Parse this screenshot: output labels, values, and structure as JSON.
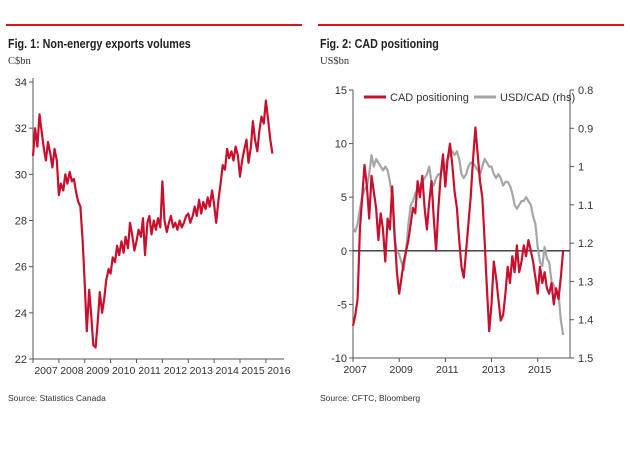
{
  "chart_data": [
    {
      "type": "line",
      "title": "Fig. 1: Non-energy exports volumes",
      "unit_label": "C$bn",
      "source": "Source: Statistics Canada",
      "xlim": [
        2007,
        2016.7
      ],
      "ylim": [
        22,
        34
      ],
      "x_ticks": [
        2007,
        2008,
        2009,
        2010,
        2011,
        2012,
        2013,
        2014,
        2015,
        2016
      ],
      "x_tick_labels": [
        "2007",
        "2008",
        "2009",
        "2010",
        "2011",
        "2012",
        "2013",
        "2014",
        "2015",
        "2016"
      ],
      "y_ticks": [
        22,
        24,
        26,
        28,
        30,
        32,
        34
      ],
      "y_tick_labels": [
        "22",
        "24",
        "26",
        "28",
        "30",
        "32",
        "34"
      ],
      "series": [
        {
          "name": "Non-energy exports volumes",
          "color": "#c8102e",
          "x": [
            2007.0,
            2007.08,
            2007.17,
            2007.25,
            2007.33,
            2007.42,
            2007.5,
            2007.58,
            2007.67,
            2007.75,
            2007.83,
            2007.92,
            2008.0,
            2008.08,
            2008.17,
            2008.25,
            2008.33,
            2008.42,
            2008.5,
            2008.58,
            2008.67,
            2008.75,
            2008.83,
            2008.92,
            2009.0,
            2009.08,
            2009.17,
            2009.25,
            2009.33,
            2009.42,
            2009.5,
            2009.58,
            2009.67,
            2009.75,
            2009.83,
            2009.92,
            2010.0,
            2010.08,
            2010.17,
            2010.25,
            2010.33,
            2010.42,
            2010.5,
            2010.58,
            2010.67,
            2010.75,
            2010.83,
            2010.92,
            2011.0,
            2011.08,
            2011.17,
            2011.25,
            2011.33,
            2011.42,
            2011.5,
            2011.58,
            2011.67,
            2011.75,
            2011.83,
            2011.92,
            2012.0,
            2012.08,
            2012.17,
            2012.25,
            2012.33,
            2012.42,
            2012.5,
            2012.58,
            2012.67,
            2012.75,
            2012.83,
            2012.92,
            2013.0,
            2013.08,
            2013.17,
            2013.25,
            2013.33,
            2013.42,
            2013.5,
            2013.58,
            2013.67,
            2013.75,
            2013.83,
            2013.92,
            2014.0,
            2014.08,
            2014.17,
            2014.25,
            2014.33,
            2014.42,
            2014.5,
            2014.58,
            2014.67,
            2014.75,
            2014.83,
            2014.92,
            2015.0,
            2015.08,
            2015.17,
            2015.25,
            2015.33,
            2015.42,
            2015.5,
            2015.58,
            2015.67,
            2015.75,
            2015.83,
            2015.92,
            2016.0,
            2016.08,
            2016.17,
            2016.25
          ],
          "y": [
            30.8,
            32.0,
            31.2,
            32.6,
            31.9,
            31.1,
            30.6,
            31.4,
            30.9,
            30.3,
            31.1,
            30.6,
            29.1,
            29.6,
            29.3,
            30.0,
            29.6,
            30.1,
            29.7,
            29.8,
            29.2,
            28.8,
            28.6,
            27.1,
            25.2,
            23.2,
            25.0,
            23.9,
            22.6,
            22.5,
            23.6,
            24.9,
            24.0,
            24.6,
            25.4,
            25.9,
            25.7,
            26.4,
            26.2,
            26.9,
            26.5,
            27.1,
            26.6,
            27.3,
            26.8,
            27.9,
            27.4,
            26.7,
            27.1,
            27.6,
            27.3,
            28.1,
            26.5,
            27.9,
            28.2,
            27.4,
            28.0,
            27.6,
            28.1,
            27.7,
            29.7,
            28.0,
            27.5,
            27.9,
            28.2,
            27.7,
            27.9,
            27.6,
            28.0,
            27.7,
            27.9,
            28.2,
            28.3,
            27.9,
            28.2,
            28.6,
            28.2,
            28.9,
            28.3,
            28.8,
            28.5,
            29.0,
            28.6,
            29.3,
            28.7,
            27.9,
            28.9,
            29.6,
            30.4,
            30.2,
            31.1,
            30.7,
            31.0,
            30.6,
            31.2,
            30.8,
            29.9,
            30.6,
            31.1,
            31.5,
            30.5,
            31.2,
            32.3,
            31.5,
            31.0,
            31.9,
            32.5,
            32.2,
            33.2,
            32.4,
            31.5,
            30.9
          ]
        }
      ]
    },
    {
      "type": "line",
      "title": "Fig. 2: CAD positioning",
      "unit_label": "US$bn",
      "source": "Source: CFTC, Bloomberg",
      "xlim": [
        2007,
        2016.4
      ],
      "ylim": [
        -10,
        15
      ],
      "y2lim": [
        0.8,
        1.5
      ],
      "y2_inverted": true,
      "x_ticks": [
        2007,
        2009,
        2011,
        2013,
        2015
      ],
      "x_tick_labels": [
        "2007",
        "2009",
        "2011",
        "2013",
        "2015"
      ],
      "y_ticks": [
        -10,
        -5,
        0,
        5,
        10,
        15
      ],
      "y_tick_labels": [
        "-10",
        "-5",
        "0",
        "5",
        "10",
        "15"
      ],
      "y2_ticks": [
        0.8,
        0.9,
        1.0,
        1.1,
        1.2,
        1.3,
        1.4,
        1.5
      ],
      "y2_tick_labels": [
        "0.8",
        "0.9",
        "1",
        "1.1",
        "1.2",
        "1.3",
        "1.4",
        "1.5"
      ],
      "legend": [
        "CAD positioning",
        "USD/CAD (rhs)"
      ],
      "series": [
        {
          "name": "CAD positioning",
          "axis": "left",
          "color": "#c8102e",
          "x": [
            2007.0,
            2007.1,
            2007.2,
            2007.3,
            2007.4,
            2007.5,
            2007.6,
            2007.7,
            2007.8,
            2007.9,
            2008.0,
            2008.1,
            2008.2,
            2008.3,
            2008.4,
            2008.5,
            2008.6,
            2008.7,
            2008.8,
            2008.9,
            2009.0,
            2009.1,
            2009.2,
            2009.3,
            2009.4,
            2009.5,
            2009.6,
            2009.7,
            2009.8,
            2009.9,
            2010.0,
            2010.1,
            2010.2,
            2010.3,
            2010.4,
            2010.5,
            2010.6,
            2010.7,
            2010.8,
            2010.9,
            2011.0,
            2011.1,
            2011.2,
            2011.3,
            2011.4,
            2011.5,
            2011.6,
            2011.7,
            2011.8,
            2011.9,
            2012.0,
            2012.1,
            2012.2,
            2012.3,
            2012.4,
            2012.5,
            2012.6,
            2012.7,
            2012.8,
            2012.9,
            2013.0,
            2013.1,
            2013.2,
            2013.3,
            2013.4,
            2013.5,
            2013.6,
            2013.7,
            2013.8,
            2013.9,
            2014.0,
            2014.1,
            2014.2,
            2014.3,
            2014.4,
            2014.5,
            2014.6,
            2014.7,
            2014.8,
            2014.9,
            2015.0,
            2015.1,
            2015.2,
            2015.3,
            2015.4,
            2015.5,
            2015.6,
            2015.7,
            2015.8,
            2015.9,
            2016.0,
            2016.1
          ],
          "y": [
            -7.0,
            -6.0,
            -4.5,
            2.0,
            5.0,
            8.0,
            6.0,
            3.0,
            7.0,
            5.5,
            4.0,
            1.0,
            3.5,
            2.0,
            -1.0,
            3.0,
            2.0,
            6.0,
            1.5,
            -2.0,
            -4.0,
            -2.5,
            -1.0,
            0.0,
            1.0,
            2.5,
            4.0,
            3.5,
            6.5,
            5.0,
            7.0,
            4.0,
            2.0,
            4.5,
            6.5,
            3.0,
            0.0,
            4.0,
            7.0,
            9.0,
            6.0,
            8.5,
            10.0,
            8.0,
            5.5,
            4.0,
            1.0,
            -1.5,
            -2.5,
            0.0,
            2.5,
            5.0,
            8.5,
            11.5,
            9.0,
            6.5,
            5.0,
            1.0,
            -3.5,
            -7.5,
            -5.0,
            -1.0,
            -2.5,
            -4.5,
            -6.5,
            -6.0,
            -4.0,
            -1.5,
            -3.0,
            -0.5,
            -2.0,
            0.5,
            -2.0,
            -1.0,
            0.5,
            -0.5,
            1.0,
            0.0,
            -1.0,
            -2.5,
            -4.0,
            -1.5,
            -3.0,
            -2.0,
            -3.5,
            -4.0,
            -3.0,
            -5.0,
            -3.5,
            -4.5,
            -2.5,
            0.0
          ]
        },
        {
          "name": "USD/CAD (rhs)",
          "axis": "right",
          "color": "#a6a6a6",
          "x": [
            2007.0,
            2007.1,
            2007.2,
            2007.3,
            2007.4,
            2007.5,
            2007.6,
            2007.7,
            2007.8,
            2007.9,
            2008.0,
            2008.1,
            2008.2,
            2008.3,
            2008.4,
            2008.5,
            2008.6,
            2008.7,
            2008.8,
            2008.9,
            2009.0,
            2009.1,
            2009.2,
            2009.3,
            2009.4,
            2009.5,
            2009.6,
            2009.7,
            2009.8,
            2009.9,
            2010.0,
            2010.1,
            2010.2,
            2010.3,
            2010.4,
            2010.5,
            2010.6,
            2010.7,
            2010.8,
            2010.9,
            2011.0,
            2011.1,
            2011.2,
            2011.3,
            2011.4,
            2011.5,
            2011.6,
            2011.7,
            2011.8,
            2011.9,
            2012.0,
            2012.1,
            2012.2,
            2012.3,
            2012.4,
            2012.5,
            2012.6,
            2012.7,
            2012.8,
            2012.9,
            2013.0,
            2013.1,
            2013.2,
            2013.3,
            2013.4,
            2013.5,
            2013.6,
            2013.7,
            2013.8,
            2013.9,
            2014.0,
            2014.1,
            2014.2,
            2014.3,
            2014.4,
            2014.5,
            2014.6,
            2014.7,
            2014.8,
            2014.9,
            2015.0,
            2015.1,
            2015.2,
            2015.3,
            2015.4,
            2015.5,
            2015.6,
            2015.7,
            2015.8,
            2015.9,
            2016.0,
            2016.1
          ],
          "y": [
            1.16,
            1.17,
            1.15,
            1.11,
            1.08,
            1.06,
            1.05,
            1.02,
            0.97,
            1.0,
            0.98,
            0.99,
            1.0,
            1.01,
            1.0,
            1.01,
            1.04,
            1.08,
            1.19,
            1.22,
            1.23,
            1.25,
            1.27,
            1.22,
            1.15,
            1.1,
            1.09,
            1.07,
            1.06,
            1.05,
            1.04,
            1.03,
            1.02,
            1.0,
            1.04,
            1.05,
            1.03,
            1.02,
            1.02,
            1.0,
            1.0,
            0.98,
            0.97,
            0.96,
            0.97,
            0.96,
            0.98,
            1.02,
            1.03,
            1.02,
            1.0,
            0.99,
            0.99,
            1.0,
            1.01,
            1.02,
            1.0,
            0.98,
            0.99,
            1.0,
            1.0,
            1.02,
            1.03,
            1.02,
            1.03,
            1.05,
            1.04,
            1.04,
            1.05,
            1.07,
            1.1,
            1.11,
            1.1,
            1.09,
            1.09,
            1.08,
            1.09,
            1.1,
            1.13,
            1.15,
            1.21,
            1.25,
            1.26,
            1.21,
            1.24,
            1.25,
            1.3,
            1.31,
            1.33,
            1.33,
            1.4,
            1.44
          ]
        }
      ]
    }
  ]
}
